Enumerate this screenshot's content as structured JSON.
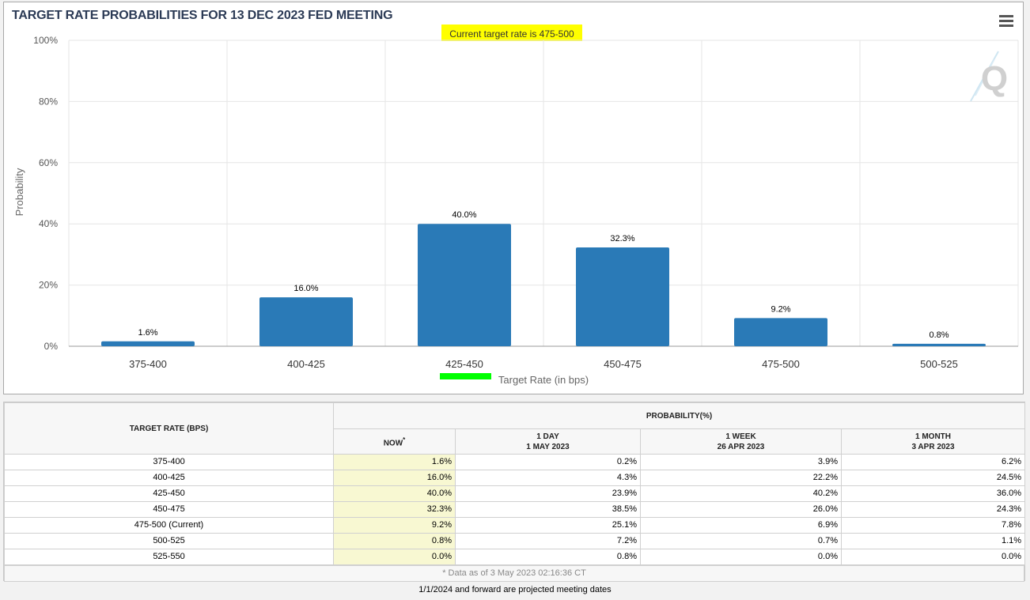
{
  "chart": {
    "title": "TARGET RATE PROBABILITIES FOR 13 DEC 2023 FED MEETING",
    "subtitle": "Current target rate is 475-500",
    "menu_icon": "hamburger-menu-icon",
    "watermark_icon": "q-logo-icon",
    "bar_color": "#2a7ab7",
    "highlight_yellow": "#ffff00",
    "highlight_green": "#00ff00"
  },
  "chart_data": {
    "type": "bar",
    "title": "TARGET RATE PROBABILITIES FOR 13 DEC 2023 FED MEETING",
    "subtitle": "Current target rate is 475-500",
    "categories": [
      "375-400",
      "400-425",
      "425-450",
      "450-475",
      "475-500",
      "500-525"
    ],
    "values": [
      1.6,
      16.0,
      40.0,
      32.3,
      9.2,
      0.8
    ],
    "value_labels": [
      "1.6%",
      "16.0%",
      "40.0%",
      "32.3%",
      "9.2%",
      "0.8%"
    ],
    "xlabel": "Target Rate (in bps)",
    "ylabel": "Probability",
    "ylim": [
      0,
      100
    ],
    "yticks": [
      "0%",
      "20%",
      "40%",
      "60%",
      "80%",
      "100%"
    ],
    "grid": true,
    "legend": "none"
  },
  "table": {
    "col_rate": "TARGET RATE (BPS)",
    "col_group": "PROBABILITY(%)",
    "col_now": "NOW",
    "col_now_mark": "*",
    "col_1day_a": "1 DAY",
    "col_1day_b": "1 MAY 2023",
    "col_1week_a": "1 WEEK",
    "col_1week_b": "26 APR 2023",
    "col_1month_a": "1 MONTH",
    "col_1month_b": "3 APR 2023",
    "rows": [
      {
        "rate": "375-400",
        "now": "1.6%",
        "day": "0.2%",
        "week": "3.9%",
        "month": "6.2%"
      },
      {
        "rate": "400-425",
        "now": "16.0%",
        "day": "4.3%",
        "week": "22.2%",
        "month": "24.5%"
      },
      {
        "rate": "425-450",
        "now": "40.0%",
        "day": "23.9%",
        "week": "40.2%",
        "month": "36.0%"
      },
      {
        "rate": "450-475",
        "now": "32.3%",
        "day": "38.5%",
        "week": "26.0%",
        "month": "24.3%"
      },
      {
        "rate": "475-500 (Current)",
        "now": "9.2%",
        "day": "25.1%",
        "week": "6.9%",
        "month": "7.8%"
      },
      {
        "rate": "500-525",
        "now": "0.8%",
        "day": "7.2%",
        "week": "0.7%",
        "month": "1.1%"
      },
      {
        "rate": "525-550",
        "now": "0.0%",
        "day": "0.8%",
        "week": "0.0%",
        "month": "0.0%"
      }
    ],
    "note": "* Data as of 3 May 2023 02:16:36 CT"
  },
  "footnote": "1/1/2024 and forward are projected meeting dates"
}
